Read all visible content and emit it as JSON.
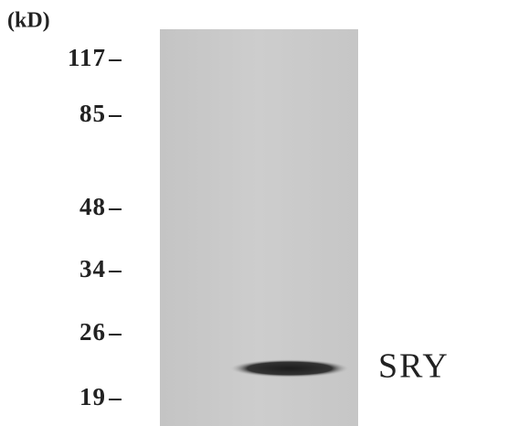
{
  "unit": "(kD)",
  "markers": [
    "117",
    "85",
    "48",
    "34",
    "26",
    "19"
  ],
  "band_label": "SRY"
}
